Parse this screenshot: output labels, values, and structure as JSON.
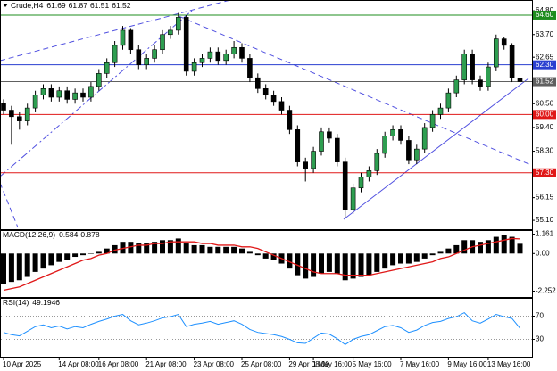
{
  "chart_data": [
    {
      "type": "candlestick",
      "title": "Crude,H4",
      "categories": [
        "10 Apr 2025",
        null,
        null,
        null,
        null,
        null,
        null,
        "14 Apr 08:00",
        null,
        null,
        null,
        null,
        "16 Apr 08:00",
        null,
        null,
        null,
        null,
        null,
        "21 Apr 08:00",
        null,
        null,
        null,
        null,
        null,
        "23 Apr 08:00",
        null,
        null,
        null,
        null,
        null,
        "25 Apr 08:00",
        null,
        null,
        null,
        null,
        null,
        "29 Apr 08:00",
        null,
        null,
        "1 May 16:00",
        null,
        null,
        null,
        null,
        "5 May 16:00",
        null,
        null,
        null,
        null,
        null,
        "7 May 16:00",
        null,
        null,
        null,
        null,
        null,
        "9 May 16:00",
        null,
        null,
        null,
        null,
        "13 May 16:00",
        null,
        null,
        null,
        null
      ],
      "open": [
        60.5,
        60.2,
        59.9,
        59.7,
        60.3,
        60.9,
        61.2,
        60.8,
        61.1,
        60.7,
        61.0,
        60.8,
        61.3,
        61.9,
        62.4,
        63.2,
        63.9,
        63.0,
        62.3,
        62.6,
        63.0,
        63.7,
        63.9,
        64.5,
        62.0,
        62.4,
        62.6,
        62.9,
        62.5,
        62.8,
        63.1,
        62.6,
        61.7,
        61.2,
        60.9,
        60.6,
        60.2,
        59.3,
        57.8,
        57.5,
        58.3,
        59.2,
        58.9,
        57.8,
        55.6,
        56.6,
        57.1,
        57.4,
        58.2,
        59.0,
        59.3,
        58.8,
        57.9,
        58.4,
        59.4,
        60.0,
        60.3,
        61.0,
        61.6,
        62.8,
        61.6,
        61.3,
        62.2,
        63.5,
        63.2,
        61.69
      ],
      "high": [
        60.7,
        60.4,
        60.1,
        60.5,
        61.1,
        61.4,
        61.4,
        61.3,
        61.3,
        61.2,
        61.2,
        61.5,
        62.1,
        62.6,
        63.4,
        64.1,
        64.0,
        63.2,
        62.8,
        63.2,
        63.9,
        64.1,
        64.7,
        64.6,
        62.6,
        62.8,
        63.1,
        63.1,
        63.0,
        63.4,
        63.3,
        62.8,
        61.9,
        61.4,
        61.1,
        60.8,
        60.4,
        59.5,
        58.0,
        58.5,
        59.4,
        59.4,
        59.1,
        58.0,
        56.8,
        57.3,
        57.6,
        58.4,
        59.2,
        59.5,
        59.5,
        59.0,
        58.6,
        59.6,
        60.2,
        60.5,
        61.2,
        61.8,
        63.0,
        63.0,
        61.8,
        62.4,
        63.7,
        63.6,
        63.3,
        61.87
      ],
      "low": [
        60.0,
        58.6,
        59.3,
        59.5,
        60.1,
        60.7,
        60.6,
        60.6,
        60.5,
        60.5,
        60.6,
        60.6,
        61.1,
        61.7,
        62.2,
        63.0,
        62.8,
        62.1,
        62.1,
        62.4,
        62.8,
        63.5,
        63.7,
        61.8,
        61.8,
        62.2,
        62.4,
        62.3,
        62.3,
        62.6,
        62.4,
        61.5,
        61.0,
        60.7,
        60.4,
        60.0,
        59.1,
        57.6,
        56.9,
        57.3,
        58.1,
        58.7,
        57.6,
        55.2,
        55.4,
        56.4,
        56.9,
        57.2,
        58.0,
        58.8,
        58.6,
        57.7,
        57.7,
        58.2,
        59.2,
        59.8,
        60.1,
        60.8,
        61.4,
        61.4,
        61.1,
        61.1,
        62.0,
        63.0,
        61.5,
        61.51
      ],
      "close": [
        60.2,
        59.9,
        59.7,
        60.3,
        60.9,
        61.2,
        60.8,
        61.1,
        60.7,
        61.0,
        60.8,
        61.3,
        61.9,
        62.4,
        63.2,
        63.9,
        63.0,
        62.3,
        62.6,
        63.0,
        63.7,
        63.9,
        64.5,
        62.0,
        62.4,
        62.6,
        62.9,
        62.5,
        62.8,
        63.1,
        62.6,
        61.7,
        61.2,
        60.9,
        60.6,
        60.2,
        59.3,
        57.8,
        57.5,
        58.3,
        59.2,
        58.9,
        57.8,
        55.6,
        56.6,
        57.1,
        57.4,
        58.2,
        59.0,
        59.3,
        58.8,
        57.9,
        58.4,
        59.4,
        60.0,
        60.3,
        61.0,
        61.6,
        62.8,
        61.6,
        61.3,
        62.2,
        63.5,
        63.2,
        61.69,
        61.52
      ],
      "up_color": "#2e9e50",
      "down_color": "#000000",
      "ylim": [
        54.69,
        65.3
      ],
      "yticks": [
        {
          "value": 64.8,
          "label": "64.80"
        },
        {
          "value": 63.7,
          "label": "63.70"
        },
        62.65,
        {
          "value": 60.5,
          "label": "60.50"
        },
        {
          "value": 59.4,
          "label": "59.40"
        },
        {
          "value": 58.3,
          "label": "58.30"
        },
        56.15,
        {
          "value": 55.1,
          "label": "55.10"
        }
      ],
      "levels": [
        {
          "value": 64.6,
          "label": "64.60",
          "color": "#1e8c1e"
        },
        {
          "value": 62.3,
          "label": "62.30",
          "color": "#2a3fd0"
        },
        {
          "value": 61.52,
          "label": "61.52",
          "color": "#606060"
        },
        {
          "value": 60.0,
          "label": "60.00",
          "color": "#e01818"
        },
        {
          "value": 57.3,
          "label": "57.30",
          "color": "#e01818"
        }
      ]
    },
    {
      "type": "macd",
      "title": "MACD(12,26,9)",
      "histogram": {
        "color": "#000000",
        "values": [
          -1.8,
          -1.7,
          -1.6,
          -1.4,
          -1.1,
          -0.9,
          -0.7,
          -0.5,
          -0.4,
          -0.2,
          -0.1,
          0.0,
          0.1,
          0.3,
          0.5,
          0.7,
          0.7,
          0.6,
          0.6,
          0.7,
          0.8,
          0.8,
          0.9,
          0.6,
          0.5,
          0.5,
          0.4,
          0.4,
          0.4,
          0.4,
          0.3,
          0.1,
          -0.1,
          -0.3,
          -0.4,
          -0.6,
          -0.9,
          -1.3,
          -1.5,
          -1.4,
          -1.2,
          -1.1,
          -1.2,
          -1.6,
          -1.5,
          -1.4,
          -1.3,
          -1.1,
          -0.9,
          -0.7,
          -0.6,
          -0.6,
          -0.5,
          -0.3,
          -0.1,
          0.1,
          0.3,
          0.5,
          0.8,
          0.8,
          0.7,
          0.8,
          1.0,
          1.1,
          1.0,
          0.584
        ]
      },
      "signal": {
        "color": "#e01818",
        "values": [
          -2.2,
          -2.1,
          -2.0,
          -1.8,
          -1.6,
          -1.4,
          -1.2,
          -1.0,
          -0.8,
          -0.6,
          -0.4,
          -0.3,
          -0.1,
          0.0,
          0.2,
          0.3,
          0.4,
          0.5,
          0.5,
          0.6,
          0.6,
          0.7,
          0.7,
          0.7,
          0.7,
          0.6,
          0.6,
          0.5,
          0.5,
          0.5,
          0.4,
          0.4,
          0.3,
          0.1,
          -0.1,
          -0.3,
          -0.5,
          -0.7,
          -0.9,
          -1.1,
          -1.2,
          -1.2,
          -1.2,
          -1.3,
          -1.3,
          -1.3,
          -1.3,
          -1.2,
          -1.1,
          -1.0,
          -0.9,
          -0.8,
          -0.7,
          -0.6,
          -0.5,
          -0.3,
          -0.2,
          0.0,
          0.2,
          0.4,
          0.5,
          0.6,
          0.7,
          0.8,
          0.9,
          0.878
        ]
      },
      "ylim": [
        -2.6,
        1.35
      ],
      "yticks": [
        1.161,
        {
          "value": 0,
          "label": "0.00"
        },
        -2.252
      ]
    },
    {
      "type": "line",
      "title": "RSI(14)",
      "color": "#1e90ff",
      "values": [
        42,
        38,
        36,
        44,
        52,
        55,
        50,
        53,
        48,
        52,
        50,
        56,
        61,
        65,
        70,
        73,
        62,
        55,
        58,
        62,
        67,
        69,
        73,
        52,
        56,
        58,
        61,
        56,
        59,
        62,
        56,
        47,
        42,
        40,
        38,
        35,
        30,
        24,
        23,
        32,
        41,
        39,
        31,
        21,
        30,
        35,
        38,
        45,
        52,
        54,
        50,
        42,
        46,
        54,
        59,
        61,
        66,
        69,
        76,
        62,
        58,
        65,
        73,
        69,
        66,
        49.1946
      ],
      "ylim": [
        0,
        100
      ],
      "yticks": [
        70,
        30
      ],
      "grid": true
    }
  ]
}
